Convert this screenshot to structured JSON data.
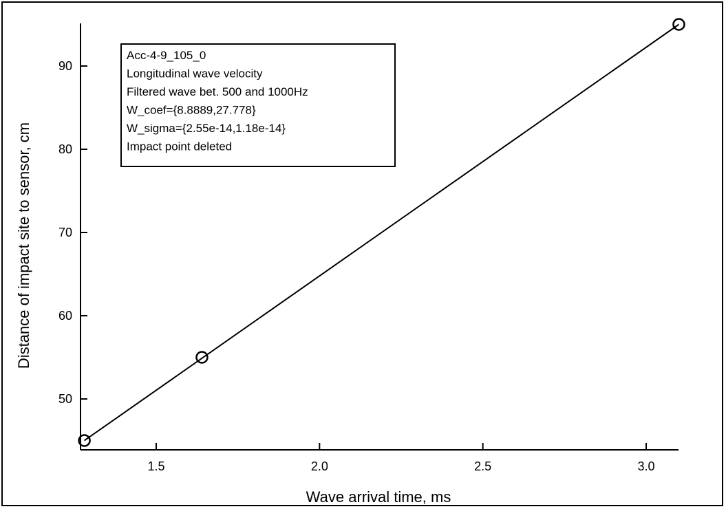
{
  "chart_data": {
    "type": "line",
    "xlabel": "Wave arrival time, ms",
    "ylabel": "Distance of impact site to sensor, cm",
    "xlim": [
      1.25,
      3.1
    ],
    "ylim": [
      44,
      96
    ],
    "xticks": [
      1.5,
      2.0,
      2.5,
      3.0
    ],
    "xtick_labels": [
      "1.5",
      "2.0",
      "2.5",
      "3.0"
    ],
    "yticks": [
      50,
      60,
      70,
      80,
      90
    ],
    "ytick_labels": [
      "50",
      "60",
      "70",
      "80",
      "90"
    ],
    "series": [
      {
        "points": [
          {
            "x": 1.28,
            "y": 45.0
          },
          {
            "x": 1.64,
            "y": 55.0
          },
          {
            "x": 3.1,
            "y": 95.0
          }
        ],
        "marker": "open-circle",
        "fit_line": {
          "x": [
            1.28,
            3.1
          ],
          "y": [
            45.0,
            95.0
          ]
        }
      }
    ],
    "annotation": [
      "Acc-4-9_105_0",
      "Longitudinal wave velocity",
      "Filtered wave bet. 500 and 1000Hz",
      "W_coef={8.8889,27.778}",
      "W_sigma={2.55e-14,1.18e-14}",
      "Impact point deleted"
    ],
    "grid": false,
    "legend": "none",
    "colors": {
      "line": "#000000",
      "marker": "#000000"
    }
  }
}
